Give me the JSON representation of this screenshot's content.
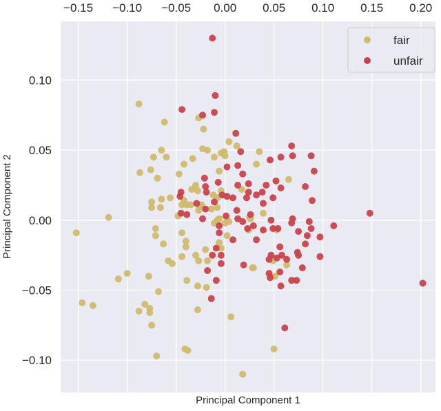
{
  "chart_data": {
    "type": "scatter",
    "title": "",
    "xlabel": "Principal Component 1",
    "ylabel": "Principal Component 2",
    "xlim": [
      -0.168,
      0.215
    ],
    "ylim": [
      -0.123,
      0.142
    ],
    "x_ticks": [
      -0.15,
      -0.1,
      -0.05,
      0.0,
      0.05,
      0.1,
      0.15,
      0.2
    ],
    "x_tick_labels": [
      "−0.15",
      "−0.10",
      "−0.05",
      "0.00",
      "0.05",
      "0.10",
      "0.15",
      "0.20"
    ],
    "x_axis_position": "top",
    "y_ticks": [
      0.1,
      0.05,
      0.0,
      -0.05,
      -0.1
    ],
    "y_tick_labels": [
      "0.10",
      "0.05",
      "0.00",
      "−0.05",
      "−0.10"
    ],
    "grid": true,
    "legend_position": "top-right",
    "series": [
      {
        "name": "fair",
        "color": "#D0BA6C",
        "points": [
          [
            -0.152,
            -0.009
          ],
          [
            -0.119,
            0.002
          ],
          [
            -0.088,
            0.083
          ],
          [
            -0.062,
            0.07
          ],
          [
            -0.027,
            0.073
          ],
          [
            -0.022,
            0.065
          ],
          [
            0.004,
            0.056
          ],
          [
            0.012,
            0.053
          ],
          [
            -0.065,
            0.05
          ],
          [
            -0.073,
            0.045
          ],
          [
            -0.06,
            0.045
          ],
          [
            -0.042,
            0.04
          ],
          [
            -0.033,
            0.044
          ],
          [
            -0.023,
            0.051
          ],
          [
            -0.018,
            0.05
          ],
          [
            -0.011,
            0.045
          ],
          [
            -0.004,
            0.048
          ],
          [
            -0.001,
            0.049
          ],
          [
            0.0,
            0.046
          ],
          [
            -0.006,
            0.035
          ],
          [
            -0.087,
            0.034
          ],
          [
            -0.076,
            0.036
          ],
          [
            -0.069,
            0.03
          ],
          [
            -0.047,
            0.033
          ],
          [
            -0.03,
            0.025
          ],
          [
            -0.034,
            0.022
          ],
          [
            -0.028,
            0.021
          ],
          [
            -0.056,
            0.016
          ],
          [
            -0.065,
            0.015
          ],
          [
            -0.075,
            0.013
          ],
          [
            -0.075,
            0.009
          ],
          [
            -0.066,
            0.009
          ],
          [
            -0.042,
            0.014
          ],
          [
            -0.044,
            0.011
          ],
          [
            -0.039,
            0.011
          ],
          [
            -0.035,
            0.011
          ],
          [
            -0.026,
            0.01
          ],
          [
            -0.024,
            0.011
          ],
          [
            -0.012,
            0.018
          ],
          [
            -0.008,
            0.016
          ],
          [
            -0.004,
            0.021
          ],
          [
            -0.014,
            0.008
          ],
          [
            -0.008,
            0.009
          ],
          [
            -0.048,
            0.003
          ],
          [
            -0.027,
            0.007
          ],
          [
            0.017,
            0.022
          ],
          [
            -0.006,
            0.001
          ],
          [
            0.025,
            0.002
          ],
          [
            -0.008,
            0.0
          ],
          [
            -0.011,
            -0.002
          ],
          [
            0.0,
            -0.002
          ],
          [
            0.004,
            -0.001
          ],
          [
            -0.071,
            -0.006
          ],
          [
            -0.071,
            -0.011
          ],
          [
            -0.063,
            -0.017
          ],
          [
            -0.044,
            -0.009
          ],
          [
            -0.04,
            -0.015
          ],
          [
            -0.04,
            -0.019
          ],
          [
            -0.044,
            -0.026
          ],
          [
            -0.03,
            -0.025
          ],
          [
            -0.027,
            -0.029
          ],
          [
            -0.02,
            -0.021
          ],
          [
            -0.018,
            -0.029
          ],
          [
            -0.006,
            -0.016
          ],
          [
            -0.004,
            -0.02
          ],
          [
            0.002,
            -0.011
          ],
          [
            -0.058,
            -0.029
          ],
          [
            -0.054,
            -0.031
          ],
          [
            -0.078,
            -0.04
          ],
          [
            -0.039,
            -0.043
          ],
          [
            -0.028,
            -0.047
          ],
          [
            -0.019,
            -0.048
          ],
          [
            -0.068,
            -0.051
          ],
          [
            -0.082,
            -0.06
          ],
          [
            -0.088,
            -0.065
          ],
          [
            -0.077,
            -0.063
          ],
          [
            -0.077,
            -0.066
          ],
          [
            -0.075,
            -0.075
          ],
          [
            -0.028,
            -0.064
          ],
          [
            0.006,
            -0.069
          ],
          [
            0.028,
            -0.034
          ],
          [
            -0.109,
            -0.042
          ],
          [
            -0.1,
            -0.038
          ],
          [
            -0.146,
            -0.059
          ],
          [
            -0.135,
            -0.061
          ],
          [
            -0.07,
            -0.097
          ],
          [
            -0.041,
            -0.092
          ],
          [
            -0.038,
            -0.093
          ],
          [
            0.05,
            -0.092
          ],
          [
            0.018,
            -0.11
          ],
          [
            0.035,
            0.049
          ],
          [
            0.032,
            0.04
          ],
          [
            0.065,
            0.029
          ],
          [
            0.039,
            0.005
          ],
          [
            0.026,
            0.001
          ],
          [
            0.024,
            -0.007
          ],
          [
            0.053,
            -0.007
          ],
          [
            0.049,
            -0.029
          ],
          [
            0.063,
            -0.032
          ],
          [
            0.029,
            -0.034
          ],
          [
            0.051,
            -0.04
          ]
        ]
      },
      {
        "name": "unfair",
        "color": "#C9434B",
        "points": [
          [
            -0.013,
            0.13
          ],
          [
            -0.01,
            0.089
          ],
          [
            -0.044,
            0.079
          ],
          [
            -0.023,
            0.075
          ],
          [
            -0.011,
            0.077
          ],
          [
            0.011,
            0.062
          ],
          [
            0.016,
            0.049
          ],
          [
            0.002,
            0.038
          ],
          [
            0.013,
            0.039
          ],
          [
            0.018,
            0.033
          ],
          [
            -0.021,
            0.03
          ],
          [
            -0.007,
            0.027
          ],
          [
            0.013,
            0.025
          ],
          [
            0.024,
            0.026
          ],
          [
            -0.02,
            0.024
          ],
          [
            -0.019,
            0.02
          ],
          [
            -0.045,
            0.02
          ],
          [
            -0.046,
            0.017
          ],
          [
            -0.003,
            0.018
          ],
          [
            0.002,
            0.017
          ],
          [
            0.008,
            0.016
          ],
          [
            0.022,
            0.016
          ],
          [
            0.024,
            0.02
          ],
          [
            -0.029,
            0.012
          ],
          [
            -0.011,
            0.013
          ],
          [
            -0.02,
            0.008
          ],
          [
            -0.045,
            0.005
          ],
          [
            -0.039,
            0.004
          ],
          [
            -0.023,
            0.001
          ],
          [
            0.012,
            0.007
          ],
          [
            0.001,
            0.003
          ],
          [
            0.013,
            0.001
          ],
          [
            0.026,
            0.004
          ],
          [
            -0.006,
            -0.004
          ],
          [
            -0.006,
            -0.009
          ],
          [
            0.008,
            -0.014
          ],
          [
            -0.009,
            -0.02
          ],
          [
            -0.013,
            -0.025
          ],
          [
            -0.004,
            -0.025
          ],
          [
            -0.004,
            -0.031
          ],
          [
            -0.018,
            -0.036
          ],
          [
            -0.009,
            -0.043
          ],
          [
            -0.014,
            -0.056
          ],
          [
            0.018,
            -0.001
          ],
          [
            0.023,
            -0.006
          ],
          [
            0.019,
            -0.032
          ],
          [
            0.068,
            0.053
          ],
          [
            0.057,
            0.045
          ],
          [
            0.069,
            0.046
          ],
          [
            0.088,
            0.046
          ],
          [
            0.046,
            0.043
          ],
          [
            0.091,
            0.035
          ],
          [
            0.052,
            0.028
          ],
          [
            0.057,
            0.023
          ],
          [
            0.082,
            0.024
          ],
          [
            0.042,
            0.025
          ],
          [
            0.032,
            0.018
          ],
          [
            0.038,
            0.02
          ],
          [
            0.049,
            0.016
          ],
          [
            0.039,
            0.012
          ],
          [
            0.089,
            0.014
          ],
          [
            0.029,
            -0.004
          ],
          [
            0.039,
            -0.007
          ],
          [
            0.047,
            0.0
          ],
          [
            0.049,
            -0.006
          ],
          [
            0.054,
            -0.006
          ],
          [
            0.069,
            0.001
          ],
          [
            0.068,
            -0.002
          ],
          [
            0.075,
            -0.008
          ],
          [
            0.086,
            -0.001
          ],
          [
            0.088,
            -0.006
          ],
          [
            0.084,
            -0.011
          ],
          [
            0.097,
            -0.012
          ],
          [
            0.111,
            -0.004
          ],
          [
            0.032,
            -0.014
          ],
          [
            0.082,
            -0.017
          ],
          [
            0.056,
            -0.019
          ],
          [
            0.047,
            -0.025
          ],
          [
            0.045,
            -0.028
          ],
          [
            0.053,
            -0.027
          ],
          [
            0.058,
            -0.025
          ],
          [
            0.063,
            -0.028
          ],
          [
            0.074,
            -0.023
          ],
          [
            0.075,
            -0.025
          ],
          [
            0.097,
            -0.026
          ],
          [
            0.079,
            -0.034
          ],
          [
            0.056,
            -0.037
          ],
          [
            0.045,
            -0.038
          ],
          [
            0.046,
            -0.041
          ],
          [
            0.068,
            -0.043
          ],
          [
            0.073,
            -0.043
          ],
          [
            0.057,
            -0.047
          ],
          [
            0.061,
            -0.077
          ],
          [
            0.148,
            0.005
          ],
          [
            0.202,
            -0.045
          ]
        ]
      }
    ],
    "colors": {
      "background": "#EAEAF2",
      "grid": "#FFFFFF"
    }
  }
}
